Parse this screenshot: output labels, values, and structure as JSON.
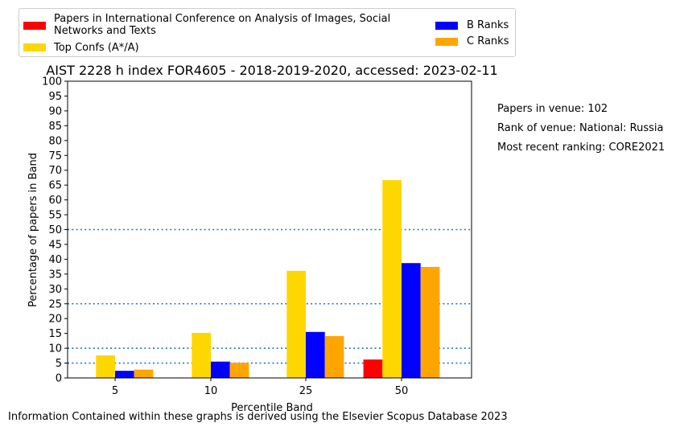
{
  "chart_data": {
    "type": "bar",
    "title": "AIST 2228 h index FOR4605 - 2018-2019-2020, accessed: 2023-02-11",
    "xlabel": "Percentile Band",
    "ylabel": "Percentage of papers in Band",
    "categories": [
      "5",
      "10",
      "25",
      "50"
    ],
    "ylim": [
      0,
      100
    ],
    "yticks": [
      0,
      5,
      10,
      15,
      20,
      25,
      30,
      35,
      40,
      45,
      50,
      55,
      60,
      65,
      70,
      75,
      80,
      85,
      90,
      95,
      100
    ],
    "reference_lines": [
      5,
      10,
      25,
      50
    ],
    "series": [
      {
        "name": "Papers in International Conference on Analysis of Images, Social Networks and Texts",
        "color": "#ff0000",
        "values": [
          0,
          0,
          0,
          6.2
        ]
      },
      {
        "name": "Top Confs (A*/A)",
        "color": "#ffd700",
        "values": [
          7.6,
          15.2,
          36.1,
          66.7
        ]
      },
      {
        "name": "B Ranks",
        "color": "#0000ff",
        "values": [
          2.4,
          5.5,
          15.5,
          38.7
        ]
      },
      {
        "name": "C Ranks",
        "color": "#ffa500",
        "values": [
          2.8,
          5.1,
          14.1,
          37.4
        ]
      }
    ],
    "legend": {
      "placement": "top",
      "labels": [
        "Papers in International Conference on Analysis of Images, Social",
        "Networks and Texts",
        "Top Confs (A*/A)",
        "B Ranks",
        "C Ranks"
      ]
    },
    "annotations": [
      "Papers in venue: 102",
      "Rank of venue: National: Russia",
      "Most recent ranking: CORE2021"
    ],
    "footer": "Information Contained within these graphs is derived using the Elsevier Scopus Database 2023",
    "grid": false
  }
}
